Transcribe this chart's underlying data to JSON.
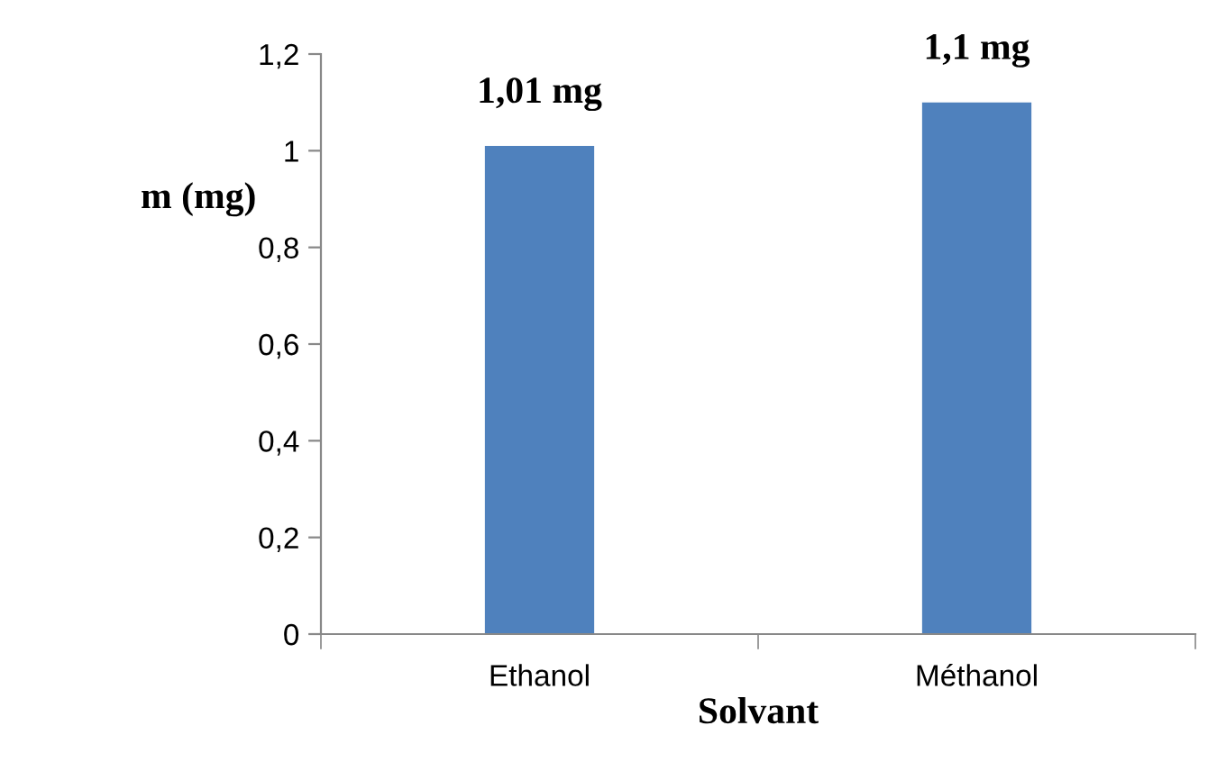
{
  "chart_data": {
    "type": "bar",
    "xlabel": "Solvant",
    "ylabel": "m (mg)",
    "categories": [
      "Ethanol",
      "Méthanol"
    ],
    "values": [
      1.01,
      1.1
    ],
    "value_labels": [
      "1,01 mg",
      "1,1 mg"
    ],
    "color": "#4f81bd",
    "ylim": [
      0,
      1.2
    ],
    "yticks": [
      0,
      {
        "value": 0.2,
        "label": "0,2"
      },
      {
        "value": 0.4,
        "label": "0,4"
      },
      {
        "value": 0.6,
        "label": "0,6"
      },
      {
        "value": 0.8,
        "label": "0,8"
      },
      1,
      {
        "value": 1.2,
        "label": "1,2"
      }
    ],
    "grid": false
  }
}
